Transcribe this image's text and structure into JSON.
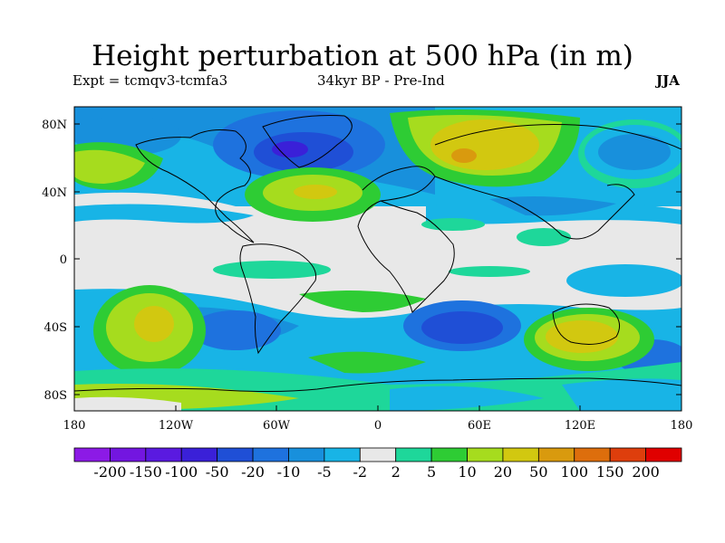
{
  "title": "Height perturbation at 500 hPa (in m)",
  "subtitle_left": "Expt = tcmqv3-tcmfa3",
  "subtitle_center": "34kyr BP - Pre-Ind",
  "subtitle_right": "JJA",
  "lat_ticks": [
    "80N",
    "40N",
    "0",
    "40S",
    "80S"
  ],
  "lon_ticks": [
    "180",
    "120W",
    "60W",
    "0",
    "60E",
    "120E",
    "180"
  ],
  "colorbar": {
    "colors": [
      "#8c1ae6",
      "#7316e0",
      "#5a1ae0",
      "#3a20d8",
      "#1f4fd6",
      "#1e72de",
      "#1890dc",
      "#18b4e6",
      "#e8e8e8",
      "#1ed79a",
      "#2ecc34",
      "#a6dc1e",
      "#d2c810",
      "#d99a0e",
      "#dd6e0c",
      "#de3e0c",
      "#e00000"
    ],
    "labels": [
      "-200",
      "-150",
      "-100",
      "-50",
      "-20",
      "-10",
      "-5",
      "-2",
      "2",
      "5",
      "10",
      "20",
      "50",
      "100",
      "150",
      "200"
    ]
  },
  "colors": {
    "neutral": "#e8e8e8",
    "coast": "#000000"
  }
}
